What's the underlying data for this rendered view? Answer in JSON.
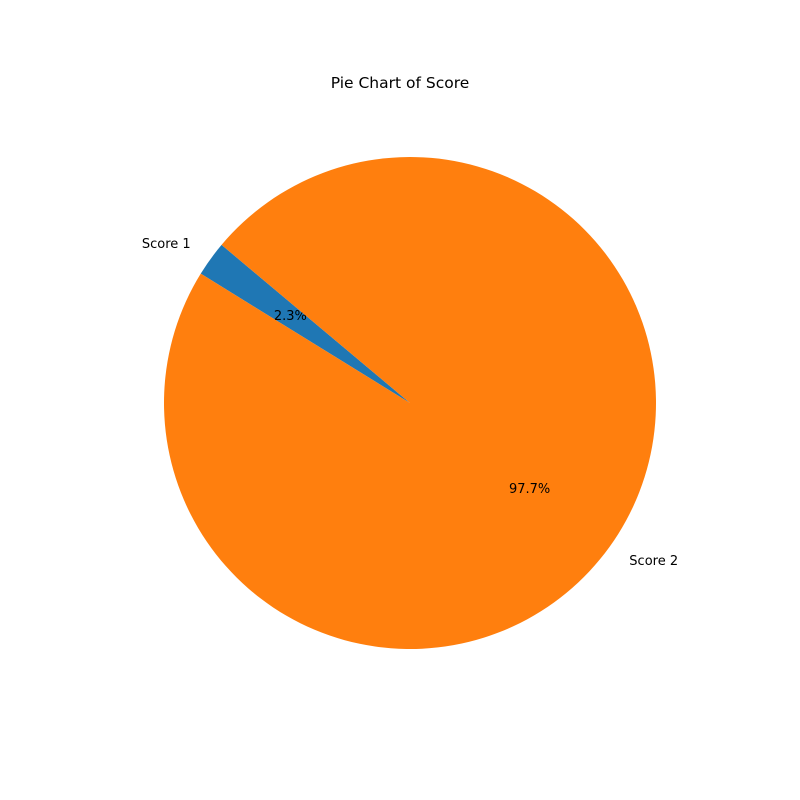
{
  "chart_data": {
    "type": "pie",
    "title": "Pie Chart of Score",
    "labels": [
      "Score 1",
      "Score 2"
    ],
    "values": [
      2.3,
      97.7
    ],
    "percent_labels": [
      "2.3%",
      "97.7%"
    ],
    "colors": [
      "#1f77b4",
      "#ff7f0e"
    ],
    "start_angle_deg": 140,
    "direction": "counterclockwise"
  }
}
